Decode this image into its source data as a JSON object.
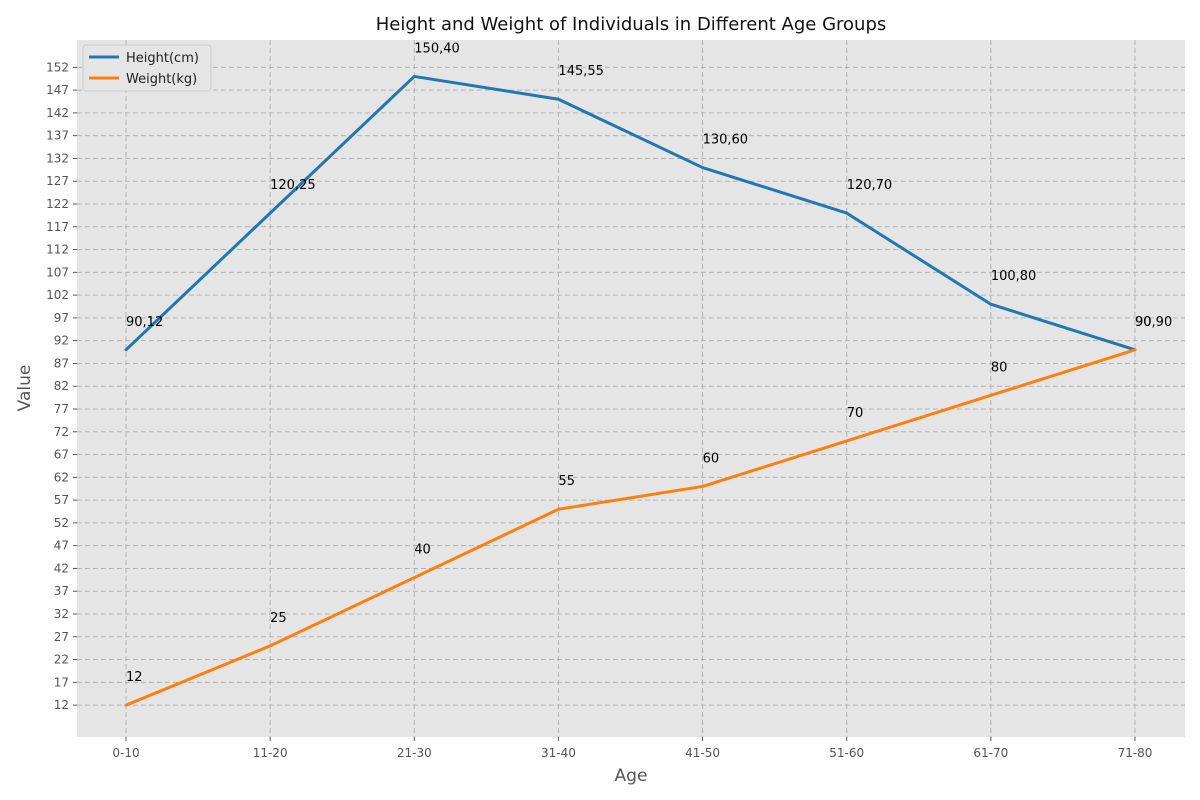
{
  "chart_data": {
    "type": "line",
    "title": "Height and Weight of Individuals in Different Age Groups",
    "xlabel": "Age",
    "ylabel": "Value",
    "categories": [
      "0-10",
      "11-20",
      "21-30",
      "31-40",
      "41-50",
      "51-60",
      "61-70",
      "71-80"
    ],
    "y_ticks": [
      12,
      17,
      22,
      27,
      32,
      37,
      42,
      47,
      52,
      57,
      62,
      67,
      72,
      77,
      82,
      87,
      92,
      97,
      102,
      107,
      112,
      117,
      122,
      127,
      132,
      137,
      142,
      147,
      152
    ],
    "ylim": [
      5,
      158
    ],
    "grid": true,
    "legend_position": "top-left",
    "series": [
      {
        "name": "Height(cm)",
        "color": "#1f77b4",
        "values": [
          90,
          120,
          150,
          145,
          130,
          120,
          100,
          90
        ],
        "point_labels": [
          "90,12",
          "120,25",
          "150,40",
          "145,55",
          "130,60",
          "120,70",
          "100,80",
          "90,90"
        ]
      },
      {
        "name": "Weight(kg)",
        "color": "#ff7f0e",
        "values": [
          12,
          25,
          40,
          55,
          60,
          70,
          80,
          90
        ],
        "point_labels": [
          "12",
          "25",
          "40",
          "55",
          "60",
          "70",
          "80",
          "90"
        ]
      }
    ],
    "plot_background": "#e5e5e5"
  }
}
